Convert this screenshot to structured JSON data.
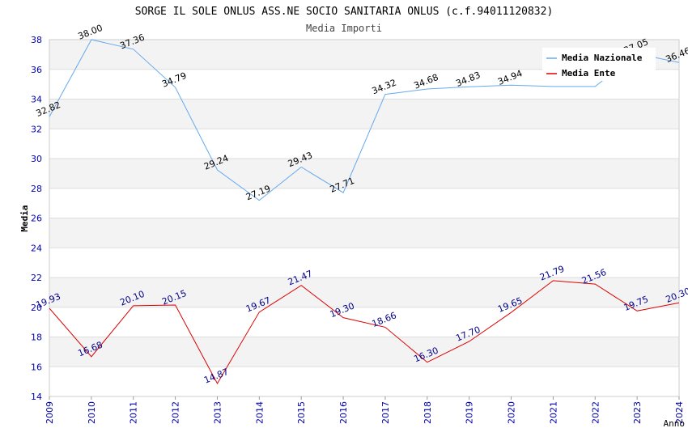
{
  "chart_data": {
    "type": "line",
    "title": "SORGE IL SOLE ONLUS ASS.NE SOCIO SANITARIA ONLUS (c.f.94011120832)",
    "subtitle": "Media Importi",
    "xlabel": "Anno",
    "ylabel": "Media",
    "categories": [
      "2009",
      "2010",
      "2011",
      "2012",
      "2013",
      "2014",
      "2015",
      "2016",
      "2017",
      "2018",
      "2019",
      "2020",
      "2021",
      "2022",
      "2023",
      "2024"
    ],
    "ylim": [
      14,
      38
    ],
    "yticks": [
      "14",
      "16",
      "18",
      "20",
      "22",
      "24",
      "26",
      "28",
      "30",
      "32",
      "34",
      "36",
      "38"
    ],
    "grid": true,
    "legend_position": "top-right",
    "series": [
      {
        "name": "Media Nazionale",
        "color": "#66aaee",
        "values": [
          32.82,
          38.0,
          37.36,
          34.79,
          29.24,
          27.19,
          29.43,
          27.71,
          34.32,
          34.68,
          34.83,
          34.94,
          34.85,
          34.85,
          37.05,
          36.46
        ],
        "labels": [
          "32.82",
          "38.00",
          "37.36",
          "34.79",
          "29.24",
          "27.19",
          "29.43",
          "27.71",
          "34.32",
          "34.68",
          "34.83",
          "34.94",
          "",
          "",
          "37.05",
          "36.46"
        ],
        "label_color": "#000000"
      },
      {
        "name": "Media Ente",
        "color": "#dd0000",
        "values": [
          19.93,
          16.68,
          20.1,
          20.15,
          14.87,
          19.67,
          21.47,
          19.3,
          18.66,
          16.3,
          17.7,
          19.65,
          21.79,
          21.56,
          19.75,
          20.3
        ],
        "labels": [
          "19.93",
          "16.68",
          "20.10",
          "20.15",
          "14.87",
          "19.67",
          "21.47",
          "19.30",
          "18.66",
          "16.30",
          "17.70",
          "19.65",
          "21.79",
          "21.56",
          "19.75",
          "20.30"
        ],
        "label_color": "#000088"
      }
    ]
  }
}
